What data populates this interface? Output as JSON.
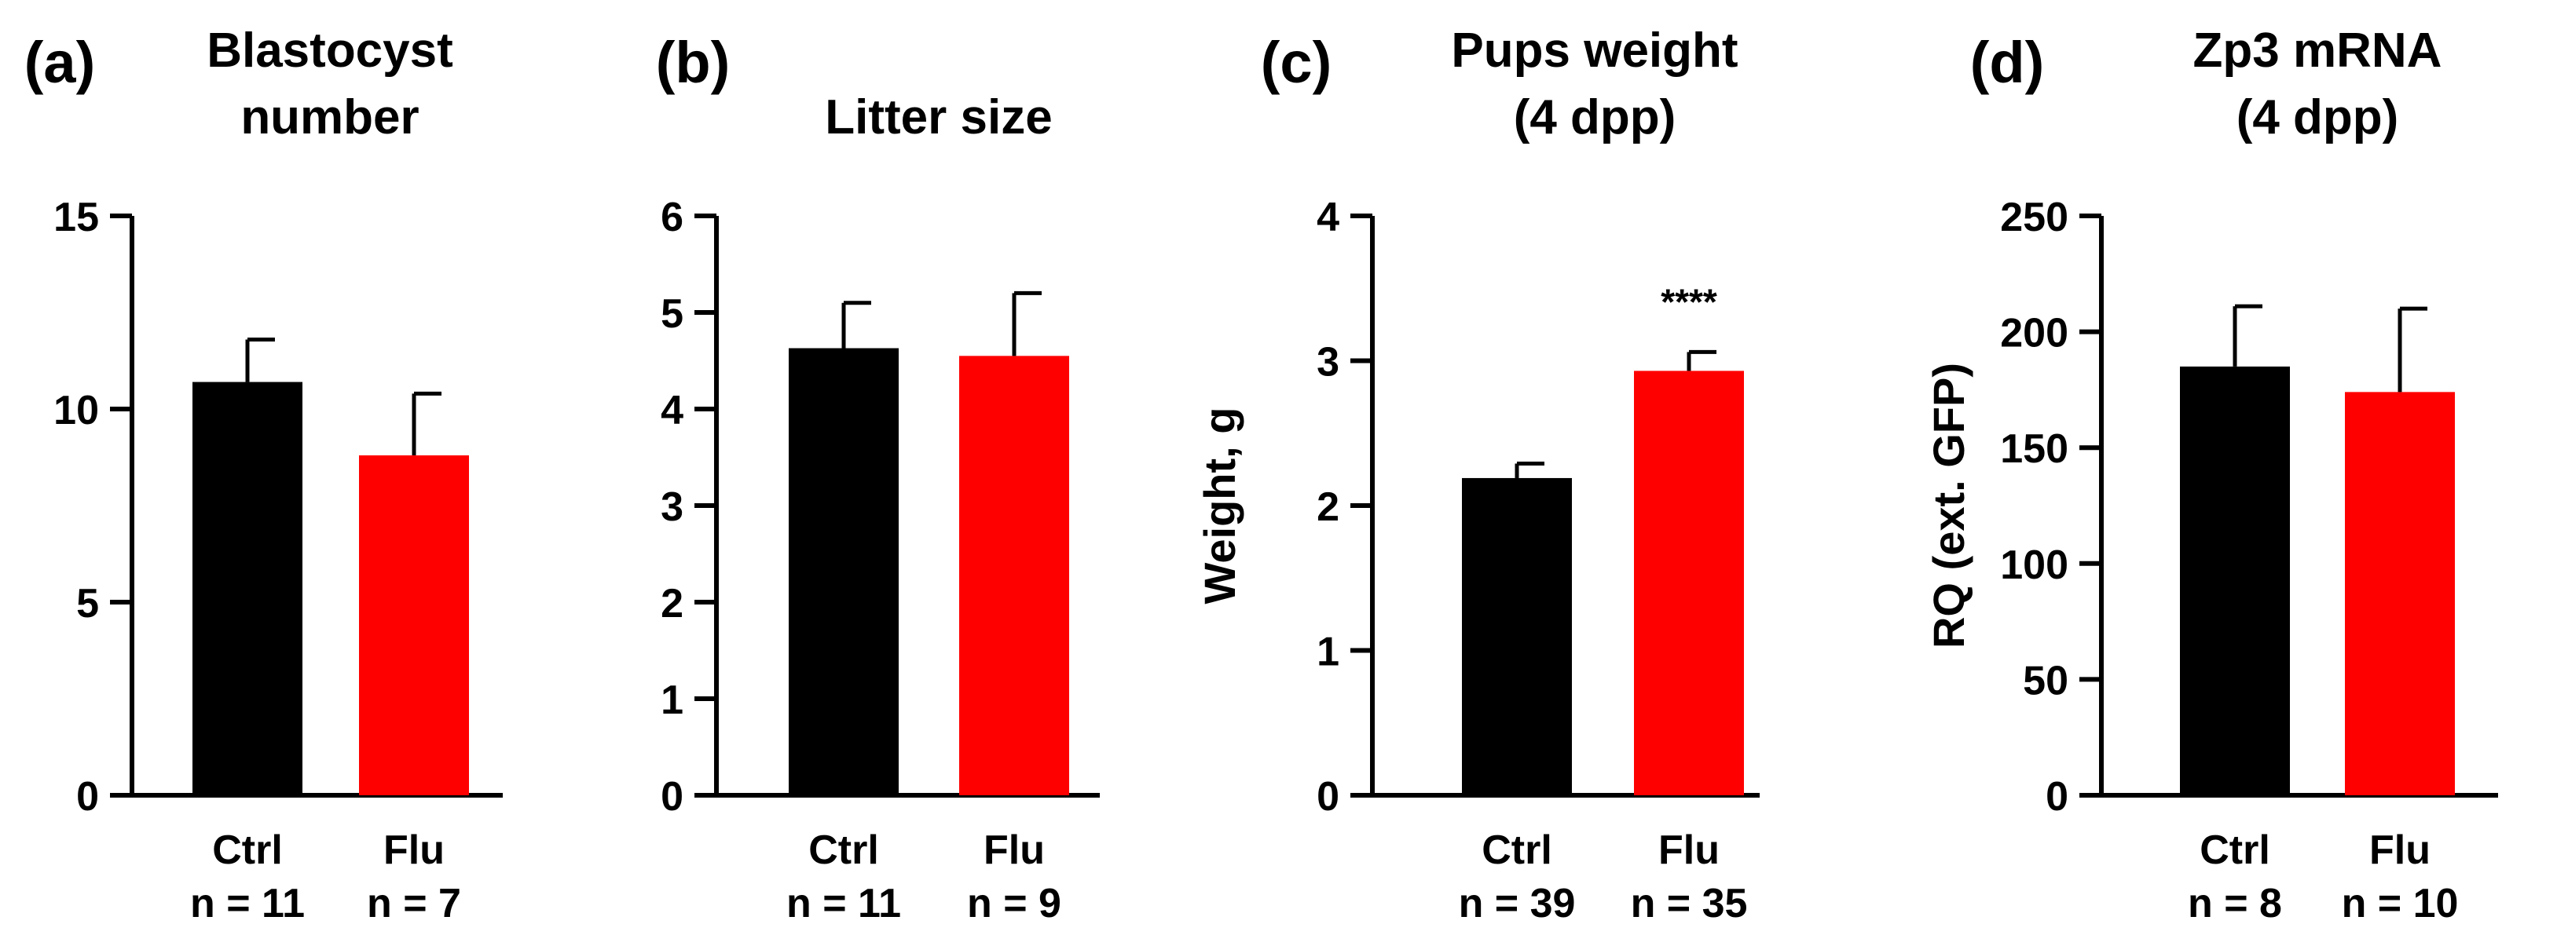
{
  "chart_data": [
    {
      "panel": "(a)",
      "type": "bar",
      "title": [
        "Blastocyst",
        "number"
      ],
      "ylabel": "",
      "ylim": [
        0,
        15
      ],
      "yticks": [
        0,
        5,
        10,
        15
      ],
      "categories": [
        "Ctrl",
        "Flu"
      ],
      "n_labels": [
        "n = 11",
        "n = 7"
      ],
      "values": [
        10.7,
        8.8
      ],
      "errors": [
        1.1,
        1.6
      ],
      "significance": [
        "",
        ""
      ]
    },
    {
      "panel": "(b)",
      "type": "bar",
      "title": [
        "Litter size"
      ],
      "ylabel": "",
      "ylim": [
        0,
        6
      ],
      "yticks": [
        0,
        1,
        2,
        3,
        4,
        5,
        6
      ],
      "categories": [
        "Ctrl",
        "Flu"
      ],
      "n_labels": [
        "n = 11",
        "n = 9"
      ],
      "values": [
        4.63,
        4.55
      ],
      "errors": [
        0.47,
        0.65
      ],
      "significance": [
        "",
        ""
      ]
    },
    {
      "panel": "(c)",
      "type": "bar",
      "title": [
        "Pups weight",
        "(4 dpp)"
      ],
      "ylabel": "Weight, g",
      "ylim": [
        0,
        4
      ],
      "yticks": [
        0,
        1,
        2,
        3,
        4
      ],
      "categories": [
        "Ctrl",
        "Flu"
      ],
      "n_labels": [
        "n = 39",
        "n = 35"
      ],
      "values": [
        2.19,
        2.93
      ],
      "errors": [
        0.1,
        0.13
      ],
      "significance": [
        "",
        "****"
      ]
    },
    {
      "panel": "(d)",
      "type": "bar",
      "title": [
        "Zp3 mRNA",
        "(4 dpp)"
      ],
      "ylabel": "RQ (ext. GFP)",
      "ylim": [
        0,
        250
      ],
      "yticks": [
        0,
        50,
        100,
        150,
        200,
        250
      ],
      "categories": [
        "Ctrl",
        "Flu"
      ],
      "n_labels": [
        "n = 8",
        "n = 10"
      ],
      "values": [
        185,
        174
      ],
      "errors": [
        26,
        36
      ],
      "significance": [
        "",
        ""
      ]
    }
  ],
  "colors": {
    "ctrl": "#000000",
    "flu": "#ff0000",
    "axis": "#000000"
  }
}
